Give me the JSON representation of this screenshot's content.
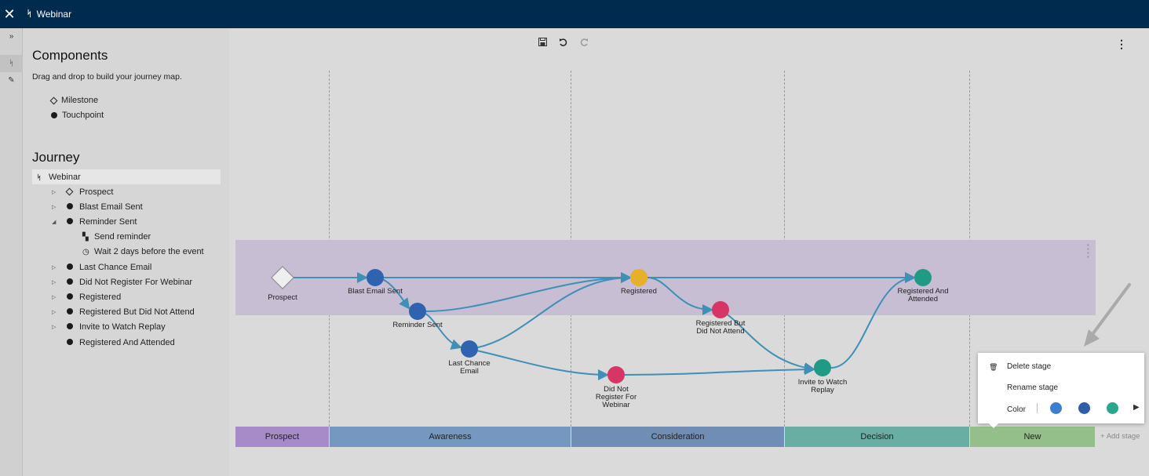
{
  "header": {
    "title": "Webinar",
    "close_icon": "close-icon",
    "journey_icon": "journey-icon"
  },
  "rail": {
    "expand_glyph": "»",
    "journey_glyph": "ᛋ",
    "edit_glyph": "✎"
  },
  "sidebar": {
    "components_title": "Components",
    "components_hint": "Drag and drop to build your journey map.",
    "components": [
      {
        "label": "Milestone",
        "icon": "diamond"
      },
      {
        "label": "Touchpoint",
        "icon": "dot"
      }
    ],
    "journey_title": "Journey",
    "tree": {
      "root": "Webinar",
      "items": [
        {
          "label": "Prospect",
          "icon": "diamond",
          "caret": "▷"
        },
        {
          "label": "Blast Email Sent",
          "icon": "dot",
          "caret": "▷"
        },
        {
          "label": "Reminder Sent",
          "icon": "dot",
          "caret": "◢"
        },
        {
          "label": "Send reminder",
          "icon": "message",
          "child": true
        },
        {
          "label": "Wait 2 days before the event",
          "icon": "clock",
          "child": true
        },
        {
          "label": "Last Chance Email",
          "icon": "dot",
          "caret": "▷"
        },
        {
          "label": "Did Not Register For Webinar",
          "icon": "dot",
          "caret": "▷"
        },
        {
          "label": "Registered",
          "icon": "dot",
          "caret": "▷"
        },
        {
          "label": "Registered But Did Not Attend",
          "icon": "dot",
          "caret": "▷"
        },
        {
          "label": "Invite to Watch Replay",
          "icon": "dot",
          "caret": "▷"
        },
        {
          "label": "Registered And Attended",
          "icon": "dot",
          "caret": ""
        }
      ]
    }
  },
  "toolbar": {
    "save_icon": "save-icon",
    "undo_icon": "undo-icon",
    "redo_icon": "redo-icon",
    "more_icon": "kebab-icon"
  },
  "nodes": [
    {
      "id": "prospect",
      "label": "Prospect",
      "shape": "diamond",
      "color": "#eeeeee"
    },
    {
      "id": "blast",
      "label": "Blast Email Sent",
      "shape": "circle",
      "color": "#2f63b0"
    },
    {
      "id": "reminder",
      "label": "Reminder Sent",
      "shape": "circle",
      "color": "#2f63b0"
    },
    {
      "id": "lastchance",
      "label": "Last Chance\nEmail",
      "shape": "circle",
      "color": "#2f63b0"
    },
    {
      "id": "didnot",
      "label": "Did Not\nRegister For\nWebinar",
      "shape": "circle",
      "color": "#d63565"
    },
    {
      "id": "registered",
      "label": "Registered",
      "shape": "circle",
      "color": "#e6b02a"
    },
    {
      "id": "rbdna",
      "label": "Registered But\nDid Not Attend",
      "shape": "circle",
      "color": "#d63565"
    },
    {
      "id": "invite",
      "label": "Invite to Watch\nReplay",
      "shape": "circle",
      "color": "#1f9a85"
    },
    {
      "id": "attended",
      "label": "Registered And\nAttended",
      "shape": "circle",
      "color": "#1f9a85"
    }
  ],
  "stages": [
    {
      "label": "Prospect",
      "color": "#a68bc8"
    },
    {
      "label": "Awareness",
      "color": "#7598c1"
    },
    {
      "label": "Consideration",
      "color": "#6f8db5"
    },
    {
      "label": "Decision",
      "color": "#6aada2"
    },
    {
      "label": "New",
      "color": "#94bf8a"
    }
  ],
  "add_stage_label": "Add stage",
  "add_stage_glyph": "+",
  "context_menu": {
    "delete_label": "Delete stage",
    "rename_label": "Rename stage",
    "color_label": "Color",
    "trash_icon": "trash-icon",
    "swatches": [
      "#3a7fd0",
      "#2e5ea8",
      "#2aa68e"
    ],
    "more_glyph": "▶"
  },
  "colors": {
    "edge": "#3f8fb6",
    "header_bg": "#002a4e",
    "lane_bg": "#c7bed4"
  }
}
